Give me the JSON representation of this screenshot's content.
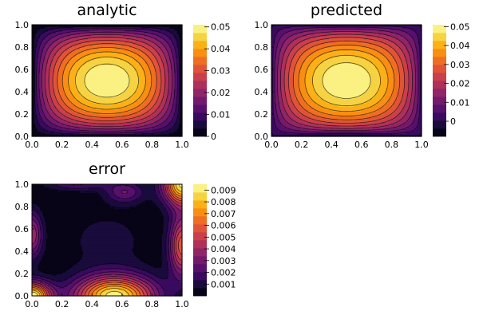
{
  "chart_data": [
    {
      "type": "contour",
      "title": "analytic",
      "xlim": [
        0,
        1
      ],
      "ylim": [
        0,
        1
      ],
      "x_ticks": [
        "0.0",
        "0.2",
        "0.4",
        "0.6",
        "0.8",
        "1.0"
      ],
      "y_ticks": [
        "0.0",
        "0.2",
        "0.4",
        "0.6",
        "0.8",
        "1.0"
      ],
      "field": "analytic",
      "clim": [
        0,
        0.051
      ],
      "colorbar_ticks": [
        {
          "value": 0,
          "label": "0"
        },
        {
          "value": 0.01,
          "label": "0.01"
        },
        {
          "value": 0.02,
          "label": "0.02"
        },
        {
          "value": 0.03,
          "label": "0.03"
        },
        {
          "value": 0.04,
          "label": "0.04"
        },
        {
          "value": 0.05,
          "label": "0.05"
        }
      ],
      "max_value": 0.051,
      "max_location": [
        0.5,
        0.5
      ]
    },
    {
      "type": "contour",
      "title": "predicted",
      "xlim": [
        0,
        1
      ],
      "ylim": [
        0,
        1
      ],
      "x_ticks": [
        "0.0",
        "0.2",
        "0.4",
        "0.6",
        "0.8",
        "1.0"
      ],
      "y_ticks": [
        "0.0",
        "0.2",
        "0.4",
        "0.6",
        "0.8",
        "1.0"
      ],
      "field": "predicted",
      "clim": [
        -0.008,
        0.051
      ],
      "colorbar_ticks": [
        {
          "value": 0,
          "label": "0"
        },
        {
          "value": 0.01,
          "label": "0.01"
        },
        {
          "value": 0.02,
          "label": "0.02"
        },
        {
          "value": 0.03,
          "label": "0.03"
        },
        {
          "value": 0.04,
          "label": "0.04"
        },
        {
          "value": 0.05,
          "label": "0.05"
        }
      ],
      "max_value": 0.051,
      "max_location": [
        0.5,
        0.5
      ]
    },
    {
      "type": "contour",
      "title": "error",
      "xlim": [
        0,
        1
      ],
      "ylim": [
        0,
        1
      ],
      "x_ticks": [
        "0.0",
        "0.2",
        "0.4",
        "0.6",
        "0.8",
        "1.0"
      ],
      "y_ticks": [
        "0.0",
        "0.2",
        "0.4",
        "0.6",
        "0.8",
        "1.0"
      ],
      "field": "error",
      "clim": [
        0,
        0.0095
      ],
      "colorbar_ticks": [
        {
          "value": 0.001,
          "label": "0.001"
        },
        {
          "value": 0.002,
          "label": "0.002"
        },
        {
          "value": 0.003,
          "label": "0.003"
        },
        {
          "value": 0.004,
          "label": "0.004"
        },
        {
          "value": 0.005,
          "label": "0.005"
        },
        {
          "value": 0.006,
          "label": "0.006"
        },
        {
          "value": 0.007,
          "label": "0.007"
        },
        {
          "value": 0.008,
          "label": "0.008"
        },
        {
          "value": 0.009,
          "label": "0.009"
        }
      ],
      "max_value": 0.0095,
      "max_locations": [
        [
          0.0,
          0.0
        ],
        [
          0.55,
          0.0
        ],
        [
          1.0,
          1.0
        ]
      ]
    }
  ],
  "colormap": "inferno"
}
